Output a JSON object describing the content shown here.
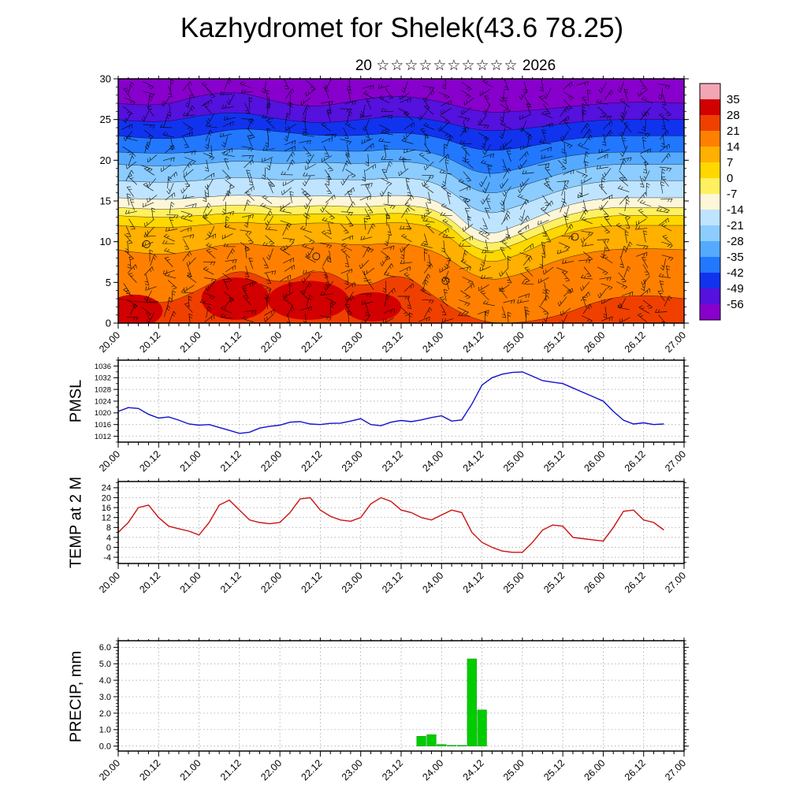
{
  "title": "Kazhydromet for Shelek(43.6 78.25)",
  "subtitle": {
    "day": "20",
    "month_glyphs": "☆☆☆☆☆☆☆☆☆☆",
    "year": "2026"
  },
  "time_axis": {
    "xmin": 20,
    "xmax": 27,
    "major_step": 0.5,
    "minor_step": 0.125,
    "tick_labels": [
      "20.00",
      "20.12",
      "21.00",
      "21.12",
      "22.00",
      "22.12",
      "23.00",
      "23.12",
      "24.00",
      "24.12",
      "25.00",
      "25.12",
      "26.00",
      "26.12",
      "27.00"
    ]
  },
  "colorbar": {
    "tick_labels": [
      "35",
      "28",
      "21",
      "14",
      "7",
      "0",
      "-7",
      "-14",
      "-21",
      "-28",
      "-35",
      "-42",
      "-49",
      "-56"
    ],
    "cell_colors": [
      "#f2a6b4",
      "#d20000",
      "#f04000",
      "#ff8000",
      "#ffb000",
      "#ffd800",
      "#fff060",
      "#fdf6d8",
      "#bfe4ff",
      "#8cccff",
      "#55aaff",
      "#2277ff",
      "#1133ee",
      "#5511dd",
      "#8800cc"
    ]
  },
  "chart_data": [
    {
      "id": "temperature-height-cross-section",
      "type": "heatmap",
      "ylim": [
        0,
        30
      ],
      "yticks": [
        0,
        5,
        10,
        15,
        20,
        25,
        30
      ],
      "ytick_labels": [
        "0",
        "5",
        "10",
        "15",
        "20",
        "25",
        "30"
      ],
      "y_minor_step": 1,
      "x": [
        20,
        20.5,
        21,
        21.5,
        22,
        22.5,
        23,
        23.5,
        24,
        24.5,
        25,
        25.5,
        26,
        26.5,
        27
      ],
      "top_color": "#8800cc",
      "boundaries": [
        {
          "threshold": -56,
          "color": "#5511dd",
          "heights": [
            27,
            26.5,
            28,
            28.5,
            27,
            26.5,
            27.5,
            28,
            27.2,
            25.8,
            26,
            26.5,
            27,
            27.2,
            27
          ]
        },
        {
          "threshold": -49,
          "color": "#1133ee",
          "heights": [
            25,
            24.5,
            25.5,
            26,
            25,
            24.5,
            25,
            25.5,
            24.8,
            23.5,
            23.8,
            24.5,
            25,
            25,
            25
          ]
        },
        {
          "threshold": -42,
          "color": "#2277ff",
          "heights": [
            23,
            22.5,
            23,
            24,
            23.5,
            23,
            23,
            23.5,
            22.8,
            21,
            21.5,
            22.5,
            23,
            23,
            23
          ]
        },
        {
          "threshold": -35,
          "color": "#55aaff",
          "heights": [
            21,
            20.8,
            21,
            21.5,
            21,
            21.3,
            21,
            21.5,
            20.8,
            18,
            19,
            20.5,
            21,
            21,
            21
          ]
        },
        {
          "threshold": -28,
          "color": "#8cccff",
          "heights": [
            19.5,
            19.2,
            19.5,
            20,
            19.5,
            19.8,
            19.5,
            20,
            19.2,
            15.5,
            16.8,
            18.5,
            19.5,
            19.5,
            19.5
          ]
        },
        {
          "threshold": -21,
          "color": "#bfe4ff",
          "heights": [
            17.5,
            17.2,
            17.5,
            18,
            17.5,
            17.8,
            17.5,
            18,
            17.2,
            13,
            14.5,
            16.5,
            17.5,
            17.5,
            17.5
          ]
        },
        {
          "threshold": -14,
          "color": "#fdf6d8",
          "heights": [
            15.4,
            15.1,
            15.4,
            15.8,
            15.4,
            15.7,
            15.4,
            15.8,
            15.1,
            10.4,
            12.2,
            14.4,
            15.4,
            15.4,
            15.4
          ]
        },
        {
          "threshold": -7,
          "color": "#fff060",
          "heights": [
            14.2,
            13.9,
            14.2,
            14.6,
            14.2,
            14.5,
            14.2,
            14.6,
            13.9,
            9.2,
            11,
            13.2,
            14.2,
            14.2,
            14.2
          ]
        },
        {
          "threshold": 0,
          "color": "#ffd800",
          "heights": [
            13.2,
            12.9,
            13.2,
            13.6,
            13.2,
            13.5,
            13.2,
            13.6,
            12.9,
            8.2,
            10,
            12.2,
            13.2,
            13.2,
            13.2
          ]
        },
        {
          "threshold": 7,
          "color": "#ffb000",
          "heights": [
            12,
            11.6,
            12,
            12.5,
            12,
            12.4,
            12,
            12.5,
            11.6,
            7,
            8.5,
            11,
            12,
            12,
            12
          ]
        },
        {
          "threshold": 14,
          "color": "#ff8000",
          "heights": [
            9,
            8.2,
            9,
            10,
            9.2,
            10,
            9.5,
            10,
            8.6,
            5,
            6,
            8,
            9,
            9.2,
            9
          ]
        },
        {
          "threshold": 21,
          "color": "#f04000",
          "heights": [
            3,
            2,
            4,
            7,
            4.5,
            7,
            4,
            6.5,
            2.5,
            0,
            0,
            1,
            3,
            3.5,
            3
          ]
        }
      ],
      "core_color": "#d20000",
      "hot_cores": [
        {
          "x": 20.2,
          "y": 1.5,
          "rx": 0.35,
          "ry": 2.0
        },
        {
          "x": 21.45,
          "y": 3.0,
          "rx": 0.42,
          "ry": 2.6
        },
        {
          "x": 22.35,
          "y": 2.8,
          "rx": 0.5,
          "ry": 2.4
        },
        {
          "x": 23.15,
          "y": 2.0,
          "rx": 0.35,
          "ry": 1.8
        }
      ],
      "calm_circles": [
        {
          "x": 20.35,
          "y": 9.7
        },
        {
          "x": 22.45,
          "y": 8.2
        },
        {
          "x": 24.05,
          "y": 5.2
        },
        {
          "x": 25.65,
          "y": 10.6
        }
      ],
      "wind_barbs": true
    },
    {
      "id": "pmsl",
      "type": "line",
      "label": "PMSL",
      "color": "#1111cc",
      "ylim": [
        1010,
        1038
      ],
      "yticks": [
        1012,
        1016,
        1020,
        1024,
        1028,
        1032,
        1036
      ],
      "ytick_labels": [
        "1012",
        "1016",
        "1020",
        "1024",
        "1028",
        "1032",
        "1036"
      ],
      "y_minor_step": 2,
      "x_start": 20,
      "x_step": 0.125,
      "values": [
        1020.5,
        1021.8,
        1021.5,
        1019.5,
        1018.2,
        1018.6,
        1017.5,
        1016.2,
        1015.8,
        1016.0,
        1015.0,
        1014.0,
        1013.0,
        1013.4,
        1014.8,
        1015.4,
        1015.8,
        1016.8,
        1017.0,
        1016.2,
        1016.0,
        1016.4,
        1016.5,
        1017.2,
        1018.0,
        1016.0,
        1015.6,
        1016.8,
        1017.4,
        1017.0,
        1017.6,
        1018.4,
        1019.0,
        1017.2,
        1017.6,
        1023.0,
        1029.5,
        1032.0,
        1033.2,
        1033.8,
        1034.0,
        1032.5,
        1031.0,
        1030.5,
        1030.0,
        1028.5,
        1027.0,
        1025.5,
        1024.0,
        1020.5,
        1017.5,
        1016.2,
        1016.6,
        1016.0,
        1016.2
      ]
    },
    {
      "id": "temp-2m",
      "type": "line",
      "label": "TEMP at 2 M",
      "color": "#cc1111",
      "ylim": [
        -6.5,
        26.5
      ],
      "yticks": [
        -4,
        0,
        4,
        8,
        12,
        16,
        20,
        24
      ],
      "ytick_labels": [
        "-4",
        "0",
        "4",
        "8",
        "12",
        "16",
        "20",
        "24"
      ],
      "y_minor_step": 2,
      "x_start": 20,
      "x_step": 0.125,
      "values": [
        6,
        10,
        16,
        17,
        12,
        8.5,
        7.5,
        6.5,
        5,
        10,
        17,
        19,
        15,
        11,
        10,
        9.5,
        10,
        14,
        19.5,
        20,
        15,
        12.5,
        11,
        10.5,
        12,
        17.5,
        20,
        18.5,
        15,
        14,
        12,
        11,
        13,
        15,
        14,
        6,
        2,
        0,
        -1.5,
        -2,
        -2,
        2,
        7,
        9,
        8.5,
        4,
        3.5,
        3,
        2.5,
        8,
        14.5,
        15,
        11,
        10,
        7
      ]
    },
    {
      "id": "precip",
      "type": "bar",
      "label": "PRECIP, mm",
      "color": "#00cc00",
      "ylim": [
        -0.3,
        6.4
      ],
      "yticks": [
        0,
        1,
        2,
        3,
        4,
        5,
        6
      ],
      "ytick_labels": [
        "0.0",
        "1.0",
        "2.0",
        "3.0",
        "4.0",
        "5.0",
        "6.0"
      ],
      "y_minor_step": 0.2,
      "x_start": 20,
      "x_step": 0.125,
      "values": [
        0,
        0,
        0,
        0,
        0,
        0,
        0,
        0,
        0,
        0,
        0,
        0,
        0,
        0,
        0,
        0,
        0,
        0,
        0,
        0,
        0,
        0,
        0,
        0,
        0,
        0,
        0,
        0,
        0,
        0,
        0.6,
        0.7,
        0.1,
        0.05,
        0.05,
        5.3,
        2.2,
        0,
        0,
        0,
        0,
        0,
        0,
        0,
        0,
        0,
        0,
        0,
        0,
        0,
        0,
        0,
        0,
        0,
        0
      ]
    }
  ]
}
